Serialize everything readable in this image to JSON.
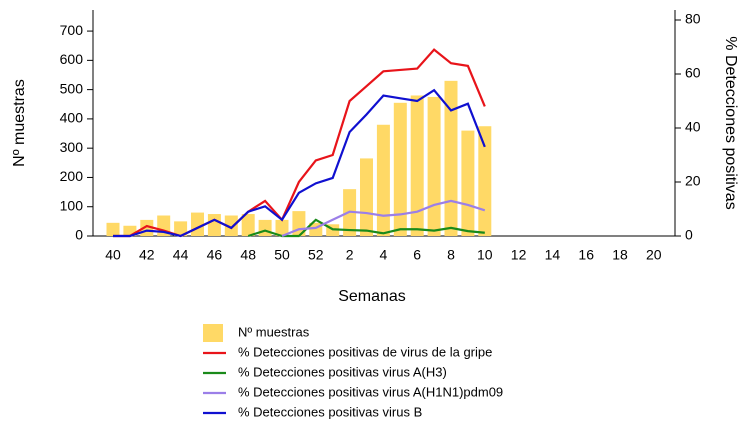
{
  "chart_data": {
    "type": "bar",
    "x_label": "Semanas",
    "y_label": "Nº muestras",
    "y2_label": "% Detecciones positivas",
    "categories": [
      "40",
      null,
      "42",
      null,
      "44",
      null,
      "46",
      null,
      "48",
      null,
      "50",
      null,
      "52",
      null,
      "2",
      null,
      "4",
      null,
      "6",
      null,
      "8",
      null,
      "10",
      null,
      "12",
      null,
      "14",
      null,
      "16",
      null,
      "18",
      null,
      "20"
    ],
    "ylim": [
      0,
      772
    ],
    "yticks": [
      0,
      100,
      200,
      300,
      400,
      500,
      600,
      700
    ],
    "y2lim": [
      0,
      83.7
    ],
    "y2ticks": [
      0,
      20,
      40,
      60,
      80
    ],
    "series": [
      {
        "name": "Nº muestras",
        "type": "bar",
        "axis": "y",
        "color": "#ffd966",
        "values": [
          45,
          35,
          55,
          70,
          50,
          80,
          75,
          70,
          75,
          55,
          55,
          85,
          45,
          40,
          160,
          265,
          380,
          455,
          480,
          475,
          530,
          360,
          375,
          null,
          null,
          null,
          null,
          null,
          null,
          null,
          null,
          null,
          null
        ]
      },
      {
        "name": "% Detecciones positivas de virus de la gripe",
        "type": "line",
        "axis": "y2",
        "color": "#e8141a",
        "values": [
          0,
          0,
          3.7,
          2,
          0,
          3,
          6,
          3,
          9,
          13,
          6,
          20,
          28,
          30,
          50,
          55.5,
          61,
          61.5,
          62,
          69,
          64,
          63,
          48,
          null,
          null,
          null,
          null,
          null,
          null,
          null,
          null,
          null,
          null
        ]
      },
      {
        "name": "% Detecciones positivas virus A(H3)",
        "type": "line",
        "axis": "y2",
        "color": "#1a8a1a",
        "values": [
          null,
          null,
          null,
          null,
          null,
          null,
          null,
          null,
          0,
          2,
          0,
          0,
          6,
          2.5,
          2.2,
          2,
          1,
          2.5,
          2.5,
          2,
          3,
          1.8,
          1.2,
          null,
          null,
          null,
          null,
          null,
          null,
          null,
          null,
          null,
          null
        ]
      },
      {
        "name": "% Detecciones positivas virus A(H1N1)pdm09",
        "type": "line",
        "axis": "y2",
        "color": "#9b7fe8",
        "values": [
          null,
          null,
          null,
          null,
          null,
          null,
          null,
          null,
          null,
          null,
          0,
          2.5,
          3,
          6,
          9,
          8.5,
          7.5,
          8,
          9,
          11.5,
          13,
          11.5,
          9.5,
          null,
          null,
          null,
          null,
          null,
          null,
          null,
          null,
          null,
          null
        ]
      },
      {
        "name": "% Detecciones positivas virus B",
        "type": "line",
        "axis": "y2",
        "color": "#1010d0",
        "values": [
          0,
          0,
          2,
          1.5,
          0,
          3,
          6,
          3,
          9,
          11,
          6,
          16,
          19.5,
          21.5,
          38.5,
          45,
          52,
          51,
          50,
          54,
          46.5,
          49,
          33,
          null,
          null,
          null,
          null,
          null,
          null,
          null,
          null,
          null,
          null
        ]
      }
    ]
  }
}
